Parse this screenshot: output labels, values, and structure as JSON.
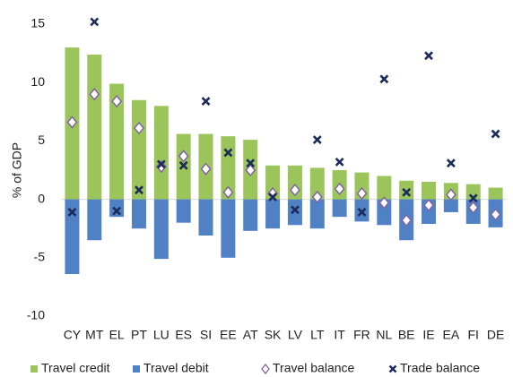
{
  "chart_data": {
    "type": "bar",
    "y_label": "% of GDP",
    "categories": [
      "CY",
      "MT",
      "EL",
      "PT",
      "LU",
      "ES",
      "SI",
      "EE",
      "AT",
      "SK",
      "LV",
      "LT",
      "IT",
      "FR",
      "NL",
      "BE",
      "IE",
      "EA",
      "FI",
      "DE"
    ],
    "ylim": [
      -10,
      15
    ],
    "yticks": [
      -10,
      -5,
      0,
      5,
      10,
      15
    ],
    "grid": false,
    "legend": "bottom",
    "series": [
      {
        "name": "Travel credit",
        "type": "bar",
        "color": "#9bc45a",
        "values": [
          13.0,
          12.4,
          9.9,
          8.5,
          8.0,
          5.6,
          5.6,
          5.4,
          5.1,
          2.9,
          2.9,
          2.7,
          2.5,
          2.3,
          2.0,
          1.6,
          1.5,
          1.4,
          1.3,
          1.0
        ]
      },
      {
        "name": "Travel debit",
        "type": "bar",
        "color": "#4f81c4",
        "values": [
          -6.4,
          -3.5,
          -1.5,
          -2.5,
          -5.1,
          -2.0,
          -3.1,
          -5.0,
          -2.7,
          -2.5,
          -2.2,
          -2.5,
          -1.5,
          -1.9,
          -2.2,
          -3.5,
          -2.1,
          -1.1,
          -2.1,
          -2.4
        ]
      },
      {
        "name": "Travel balance",
        "type": "scatter",
        "marker": "diamond",
        "color": "#8064a2",
        "values": [
          6.6,
          9.0,
          8.4,
          6.1,
          2.8,
          3.7,
          2.6,
          0.6,
          2.5,
          0.5,
          0.8,
          0.2,
          0.9,
          0.5,
          -0.3,
          -1.8,
          -0.5,
          0.4,
          -0.7,
          -1.3
        ]
      },
      {
        "name": "Trade balance",
        "type": "scatter",
        "marker": "x",
        "color": "#1c2b5a",
        "values": [
          -1.1,
          15.2,
          -1.0,
          0.8,
          3.0,
          2.9,
          8.4,
          4.0,
          3.1,
          0.2,
          -0.9,
          5.1,
          3.2,
          -1.1,
          10.3,
          0.6,
          12.3,
          3.1,
          0.1,
          5.6
        ]
      }
    ]
  }
}
